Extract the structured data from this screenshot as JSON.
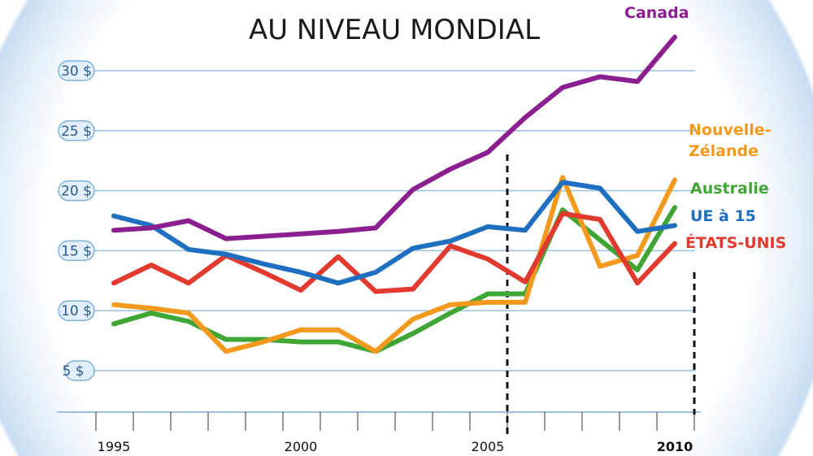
{
  "chart_data": {
    "type": "line",
    "title": "AU NIVEAU MONDIAL",
    "xlabel": "",
    "ylabel": "",
    "x": [
      1995,
      1996,
      1997,
      1998,
      1999,
      2000,
      2001,
      2002,
      2003,
      2004,
      2005,
      2006,
      2007,
      2008,
      2009,
      2010
    ],
    "x_tick_labels": [
      "1995",
      "2000",
      "2005",
      "2010"
    ],
    "y_tick_labels": [
      "5 $",
      "10 $",
      "15 $",
      "20 $",
      "25 $",
      "30 $"
    ],
    "y_ticks": [
      5,
      10,
      15,
      20,
      25,
      30
    ],
    "ylim": [
      2,
      34
    ],
    "grid": true,
    "series": [
      {
        "name": "Canada",
        "label": "Canada",
        "color": "#8b1f8f",
        "values": [
          16.7,
          16.9,
          17.5,
          16.0,
          16.2,
          16.4,
          16.6,
          16.9,
          20.1,
          21.8,
          23.2,
          26.1,
          28.6,
          29.5,
          29.1,
          32.8
        ]
      },
      {
        "name": "Nouvelle-Zélande",
        "label": [
          "Nouvelle-",
          "Zélande"
        ],
        "color": "#f39a1e",
        "values": [
          10.5,
          10.2,
          9.8,
          6.6,
          7.4,
          8.4,
          8.4,
          6.6,
          9.3,
          10.5,
          10.7,
          10.7,
          21.1,
          13.7,
          14.6,
          20.9
        ]
      },
      {
        "name": "Australie",
        "label": "Australie",
        "color": "#3fa535",
        "values": [
          8.9,
          9.8,
          9.1,
          7.6,
          7.6,
          7.4,
          7.4,
          6.6,
          8.1,
          9.8,
          11.4,
          11.4,
          18.4,
          15.9,
          13.4,
          18.6
        ]
      },
      {
        "name": "UE à 15",
        "label": "UE à 15",
        "color": "#1f6fc0",
        "values": [
          17.9,
          17.1,
          15.1,
          14.7,
          13.9,
          13.2,
          12.3,
          13.2,
          15.2,
          15.8,
          17.0,
          16.7,
          20.7,
          20.2,
          16.6,
          17.1
        ]
      },
      {
        "name": "ÉTATS-UNIS",
        "label": "ÉTATS-UNIS",
        "color": "#e23a2f",
        "values": [
          12.3,
          13.8,
          12.3,
          14.6,
          13.2,
          11.7,
          14.5,
          11.6,
          11.8,
          15.4,
          14.3,
          12.4,
          18.1,
          17.6,
          12.3,
          15.6
        ]
      }
    ],
    "annotations": [
      "dashed vertical line at 2005.5",
      "dashed vertical line at 2010.5"
    ]
  }
}
